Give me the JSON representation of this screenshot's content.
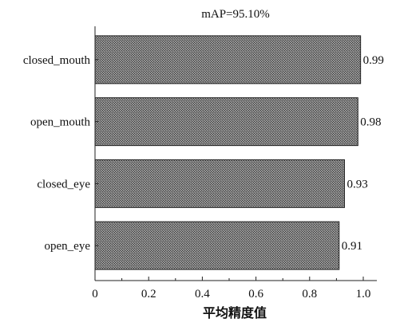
{
  "chart_data": {
    "type": "bar",
    "orientation": "horizontal",
    "title": "mAP=95.10%",
    "xlabel": "平均精度值",
    "ylabel": "",
    "categories": [
      "closed_mouth",
      "open_mouth",
      "closed_eye",
      "open_eye"
    ],
    "values": [
      0.99,
      0.98,
      0.93,
      0.91
    ],
    "data_labels": [
      "0.99",
      "0.98",
      "0.93",
      "0.91"
    ],
    "xlim": [
      0,
      1.0
    ],
    "xticks": [
      0,
      0.2,
      0.4,
      0.6,
      0.8,
      1.0
    ],
    "xtick_labels": [
      "0",
      "0.2",
      "0.4",
      "0.6",
      "0.8",
      "1.0"
    ],
    "grid": false,
    "legend": "none",
    "bar_fill": "#6e6e6e",
    "bar_stroke": "#222222"
  }
}
